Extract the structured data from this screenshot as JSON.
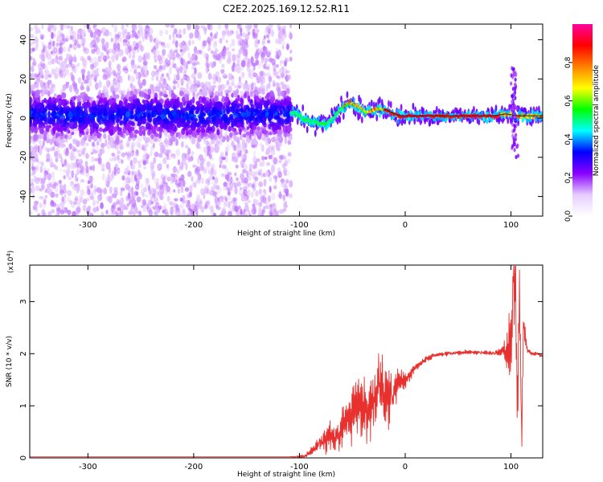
{
  "figure_title": "C2E2.2025.169.12.52.R11",
  "chart_data": [
    {
      "type": "heatmap",
      "xlabel": "Height of straight line (km)",
      "ylabel": "Frequency (Hz)",
      "xlim": [
        -355,
        130
      ],
      "ylim": [
        -50,
        48
      ],
      "xticks": [
        -300,
        -200,
        -100,
        0,
        100
      ],
      "yticks": [
        -40,
        -20,
        0,
        20,
        40
      ],
      "colorbar": {
        "label": "Normalized spectral amplitude",
        "range": [
          0,
          1
        ],
        "ticks": [
          "0.0",
          "0.2",
          "0.4",
          "0.6",
          "0.8"
        ],
        "tick_values": [
          0,
          0.2,
          0.4,
          0.6,
          0.8
        ],
        "colors": [
          "#ffffff",
          "#e6ccff",
          "#8a00ff",
          "#0000ff",
          "#00ffff",
          "#00ff00",
          "#ffff00",
          "#ff8000",
          "#ff0000",
          "#ff00a0"
        ]
      },
      "ridge": [
        [
          -355,
          2
        ],
        [
          -300,
          1
        ],
        [
          -250,
          2
        ],
        [
          -200,
          1
        ],
        [
          -150,
          2
        ],
        [
          -110,
          2
        ],
        [
          -105,
          3
        ],
        [
          -95,
          -1
        ],
        [
          -85,
          -2
        ],
        [
          -75,
          -3
        ],
        [
          -68,
          0
        ],
        [
          -60,
          5
        ],
        [
          -52,
          8
        ],
        [
          -45,
          6
        ],
        [
          -38,
          3
        ],
        [
          -30,
          4
        ],
        [
          -25,
          5
        ],
        [
          -18,
          4
        ],
        [
          -10,
          2
        ],
        [
          -5,
          1
        ],
        [
          0,
          1
        ],
        [
          30,
          1
        ],
        [
          60,
          1
        ],
        [
          85,
          1
        ],
        [
          95,
          2
        ],
        [
          105,
          1
        ],
        [
          115,
          1
        ],
        [
          130,
          1
        ]
      ],
      "spike": {
        "x": 103,
        "y_range": [
          -20,
          26
        ]
      }
    },
    {
      "type": "line",
      "xlabel": "Height of straight line (km)",
      "ylabel": "SNR (10 * v/v)",
      "y_multiplier": "(x10",
      "y_multiplier_exp": "4",
      "y_multiplier_close": ")",
      "xlim": [
        -355,
        130
      ],
      "ylim": [
        0,
        3.7
      ],
      "xticks": [
        -300,
        -200,
        -100,
        0,
        100
      ],
      "yticks": [
        0,
        1,
        2,
        3
      ],
      "color": "#e8302e",
      "series": [
        {
          "x": [
            -355,
            -300,
            -250,
            -200,
            -150,
            -110,
            -95,
            -90,
            -85,
            -80,
            -75,
            -70,
            -65,
            -60,
            -55,
            -50,
            -45,
            -40,
            -35,
            -30,
            -25,
            -20,
            -15,
            -10,
            -5,
            0,
            5,
            10,
            20,
            30,
            40,
            50,
            60,
            70,
            80,
            90,
            95,
            98,
            100,
            102,
            104,
            106,
            108,
            110,
            112,
            115,
            120,
            125,
            130
          ],
          "y": [
            0.02,
            0.02,
            0.02,
            0.02,
            0.02,
            0.02,
            0.03,
            0.1,
            0.2,
            0.3,
            0.35,
            0.45,
            0.4,
            0.55,
            0.7,
            0.9,
            1.0,
            0.9,
            0.8,
            1.1,
            1.4,
            1.2,
            1.1,
            1.3,
            1.45,
            1.5,
            1.6,
            1.75,
            1.9,
            1.98,
            2.0,
            2.02,
            2.03,
            2.02,
            2.01,
            2.02,
            2.05,
            2.1,
            2.3,
            3.4,
            3.7,
            1.0,
            3.2,
            0.5,
            2.6,
            2.1,
            2.0,
            2.0,
            1.95
          ],
          "noise": [
            0,
            0,
            0,
            0,
            0,
            0,
            0.05,
            0.1,
            0.15,
            0.25,
            0.35,
            0.45,
            0.4,
            0.55,
            0.7,
            0.8,
            0.9,
            0.9,
            0.8,
            0.9,
            1.0,
            0.9,
            0.7,
            0.6,
            0.4,
            0.25,
            0.15,
            0.1,
            0.08,
            0.06,
            0.06,
            0.06,
            0.06,
            0.06,
            0.06,
            0.1,
            0.4,
            0.8,
            1.2,
            1.4,
            1.6,
            1.4,
            1.2,
            1.0,
            0.5,
            0.1,
            0.05,
            0.05,
            0.05
          ]
        }
      ]
    }
  ]
}
